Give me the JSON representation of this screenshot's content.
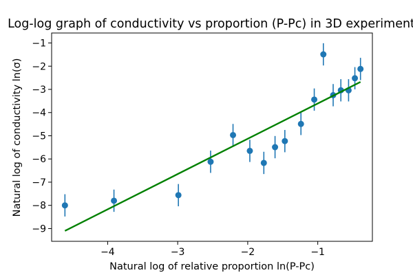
{
  "chart_data": {
    "type": "scatter",
    "title": "Log-log graph of conductivity vs proportion (P-Pc) in 3D experiment",
    "xlabel": "Natural log of relative proportion ln(P-Pc)",
    "ylabel": "Natural log of conductivity ln(σ)",
    "xlim": [
      -4.8,
      -0.22
    ],
    "ylim": [
      -9.55,
      -0.57
    ],
    "x_ticks": [
      -4,
      -3,
      -2,
      -1
    ],
    "y_ticks": [
      -9,
      -8,
      -7,
      -6,
      -5,
      -4,
      -3,
      -2,
      -1
    ],
    "x_tick_labels": [
      "−4",
      "−3",
      "−2",
      "−1"
    ],
    "y_tick_labels": [
      "−9",
      "−8",
      "−7",
      "−6",
      "−5",
      "−4",
      "−3",
      "−2",
      "−1"
    ],
    "grid": false,
    "series": [
      {
        "type": "scatter-errorbar",
        "color": "#1f77b4",
        "points": [
          {
            "x": -4.61,
            "y": -8.0,
            "err": 0.48
          },
          {
            "x": -3.91,
            "y": -7.8,
            "err": 0.48
          },
          {
            "x": -2.99,
            "y": -7.56,
            "err": 0.48
          },
          {
            "x": -2.53,
            "y": -6.12,
            "err": 0.48
          },
          {
            "x": -2.21,
            "y": -4.97,
            "err": 0.48
          },
          {
            "x": -1.97,
            "y": -5.65,
            "err": 0.48
          },
          {
            "x": -1.77,
            "y": -6.17,
            "err": 0.48
          },
          {
            "x": -1.61,
            "y": -5.49,
            "err": 0.48
          },
          {
            "x": -1.47,
            "y": -5.23,
            "err": 0.48
          },
          {
            "x": -1.24,
            "y": -4.49,
            "err": 0.48
          },
          {
            "x": -1.05,
            "y": -3.44,
            "err": 0.48
          },
          {
            "x": -0.92,
            "y": -1.49,
            "err": 0.48
          },
          {
            "x": -0.78,
            "y": -3.25,
            "err": 0.48
          },
          {
            "x": -0.67,
            "y": -3.04,
            "err": 0.48
          },
          {
            "x": -0.56,
            "y": -3.04,
            "err": 0.48
          },
          {
            "x": -0.47,
            "y": -2.52,
            "err": 0.48
          },
          {
            "x": -0.39,
            "y": -2.12,
            "err": 0.48
          }
        ]
      },
      {
        "type": "line",
        "color": "#008000",
        "x": [
          -4.61,
          -0.39
        ],
        "y": [
          -9.1,
          -2.68
        ]
      }
    ]
  }
}
